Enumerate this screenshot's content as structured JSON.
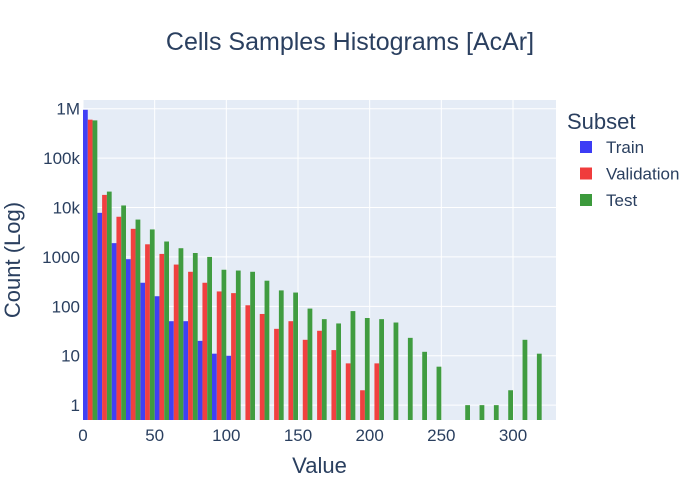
{
  "chart_data": {
    "type": "bar",
    "title": "Cells Samples Histograms [AcAr]",
    "xlabel": "Value",
    "ylabel": "Count (Log)",
    "yscale": "log",
    "xlim": [
      0,
      330
    ],
    "ylim": [
      0.5,
      1500000
    ],
    "bin_width": 10,
    "grid": true,
    "legend": {
      "title": "Subset",
      "placement": "right"
    },
    "x_ticks": [
      {
        "value": 0,
        "label": "0"
      },
      {
        "value": 50,
        "label": "50"
      },
      {
        "value": 100,
        "label": "100"
      },
      {
        "value": 150,
        "label": "150"
      },
      {
        "value": 200,
        "label": "200"
      },
      {
        "value": 250,
        "label": "250"
      },
      {
        "value": 300,
        "label": "300"
      }
    ],
    "y_ticks": [
      {
        "value": 1,
        "label": "1"
      },
      {
        "value": 10,
        "label": "10"
      },
      {
        "value": 100,
        "label": "100"
      },
      {
        "value": 1000,
        "label": "1000"
      },
      {
        "value": 10000,
        "label": "10k"
      },
      {
        "value": 100000,
        "label": "100k"
      },
      {
        "value": 1000000,
        "label": "1M"
      }
    ],
    "x": [
      0,
      10,
      20,
      30,
      40,
      50,
      60,
      70,
      80,
      90,
      100,
      110,
      120,
      130,
      140,
      150,
      160,
      170,
      180,
      190,
      200,
      210,
      220,
      230,
      240,
      250,
      260,
      270,
      280,
      290,
      300,
      310,
      320
    ],
    "series": [
      {
        "name": "Train",
        "color": "#3c3cf5",
        "values": [
          950000,
          7800,
          1900,
          900,
          300,
          160,
          50,
          50,
          20,
          11,
          10,
          null,
          null,
          null,
          null,
          null,
          null,
          null,
          null,
          null,
          null,
          null,
          null,
          null,
          null,
          null,
          null,
          null,
          null,
          null,
          null,
          null,
          null
        ]
      },
      {
        "name": "Validation",
        "color": "#f03c3c",
        "values": [
          600000,
          18000,
          6500,
          3700,
          1800,
          1150,
          700,
          500,
          300,
          200,
          185,
          105,
          70,
          35,
          50,
          21,
          32,
          13,
          7,
          2,
          7,
          null,
          null,
          null,
          null,
          null,
          null,
          null,
          null,
          null,
          null,
          null,
          null
        ]
      },
      {
        "name": "Test",
        "color": "#3c9a3c",
        "values": [
          580000,
          21000,
          11000,
          5700,
          3600,
          2050,
          1500,
          1200,
          1000,
          550,
          530,
          500,
          330,
          210,
          190,
          90,
          55,
          45,
          80,
          58,
          55,
          47,
          23,
          12,
          6,
          null,
          1,
          1,
          1,
          2,
          21,
          11,
          null
        ]
      }
    ]
  }
}
